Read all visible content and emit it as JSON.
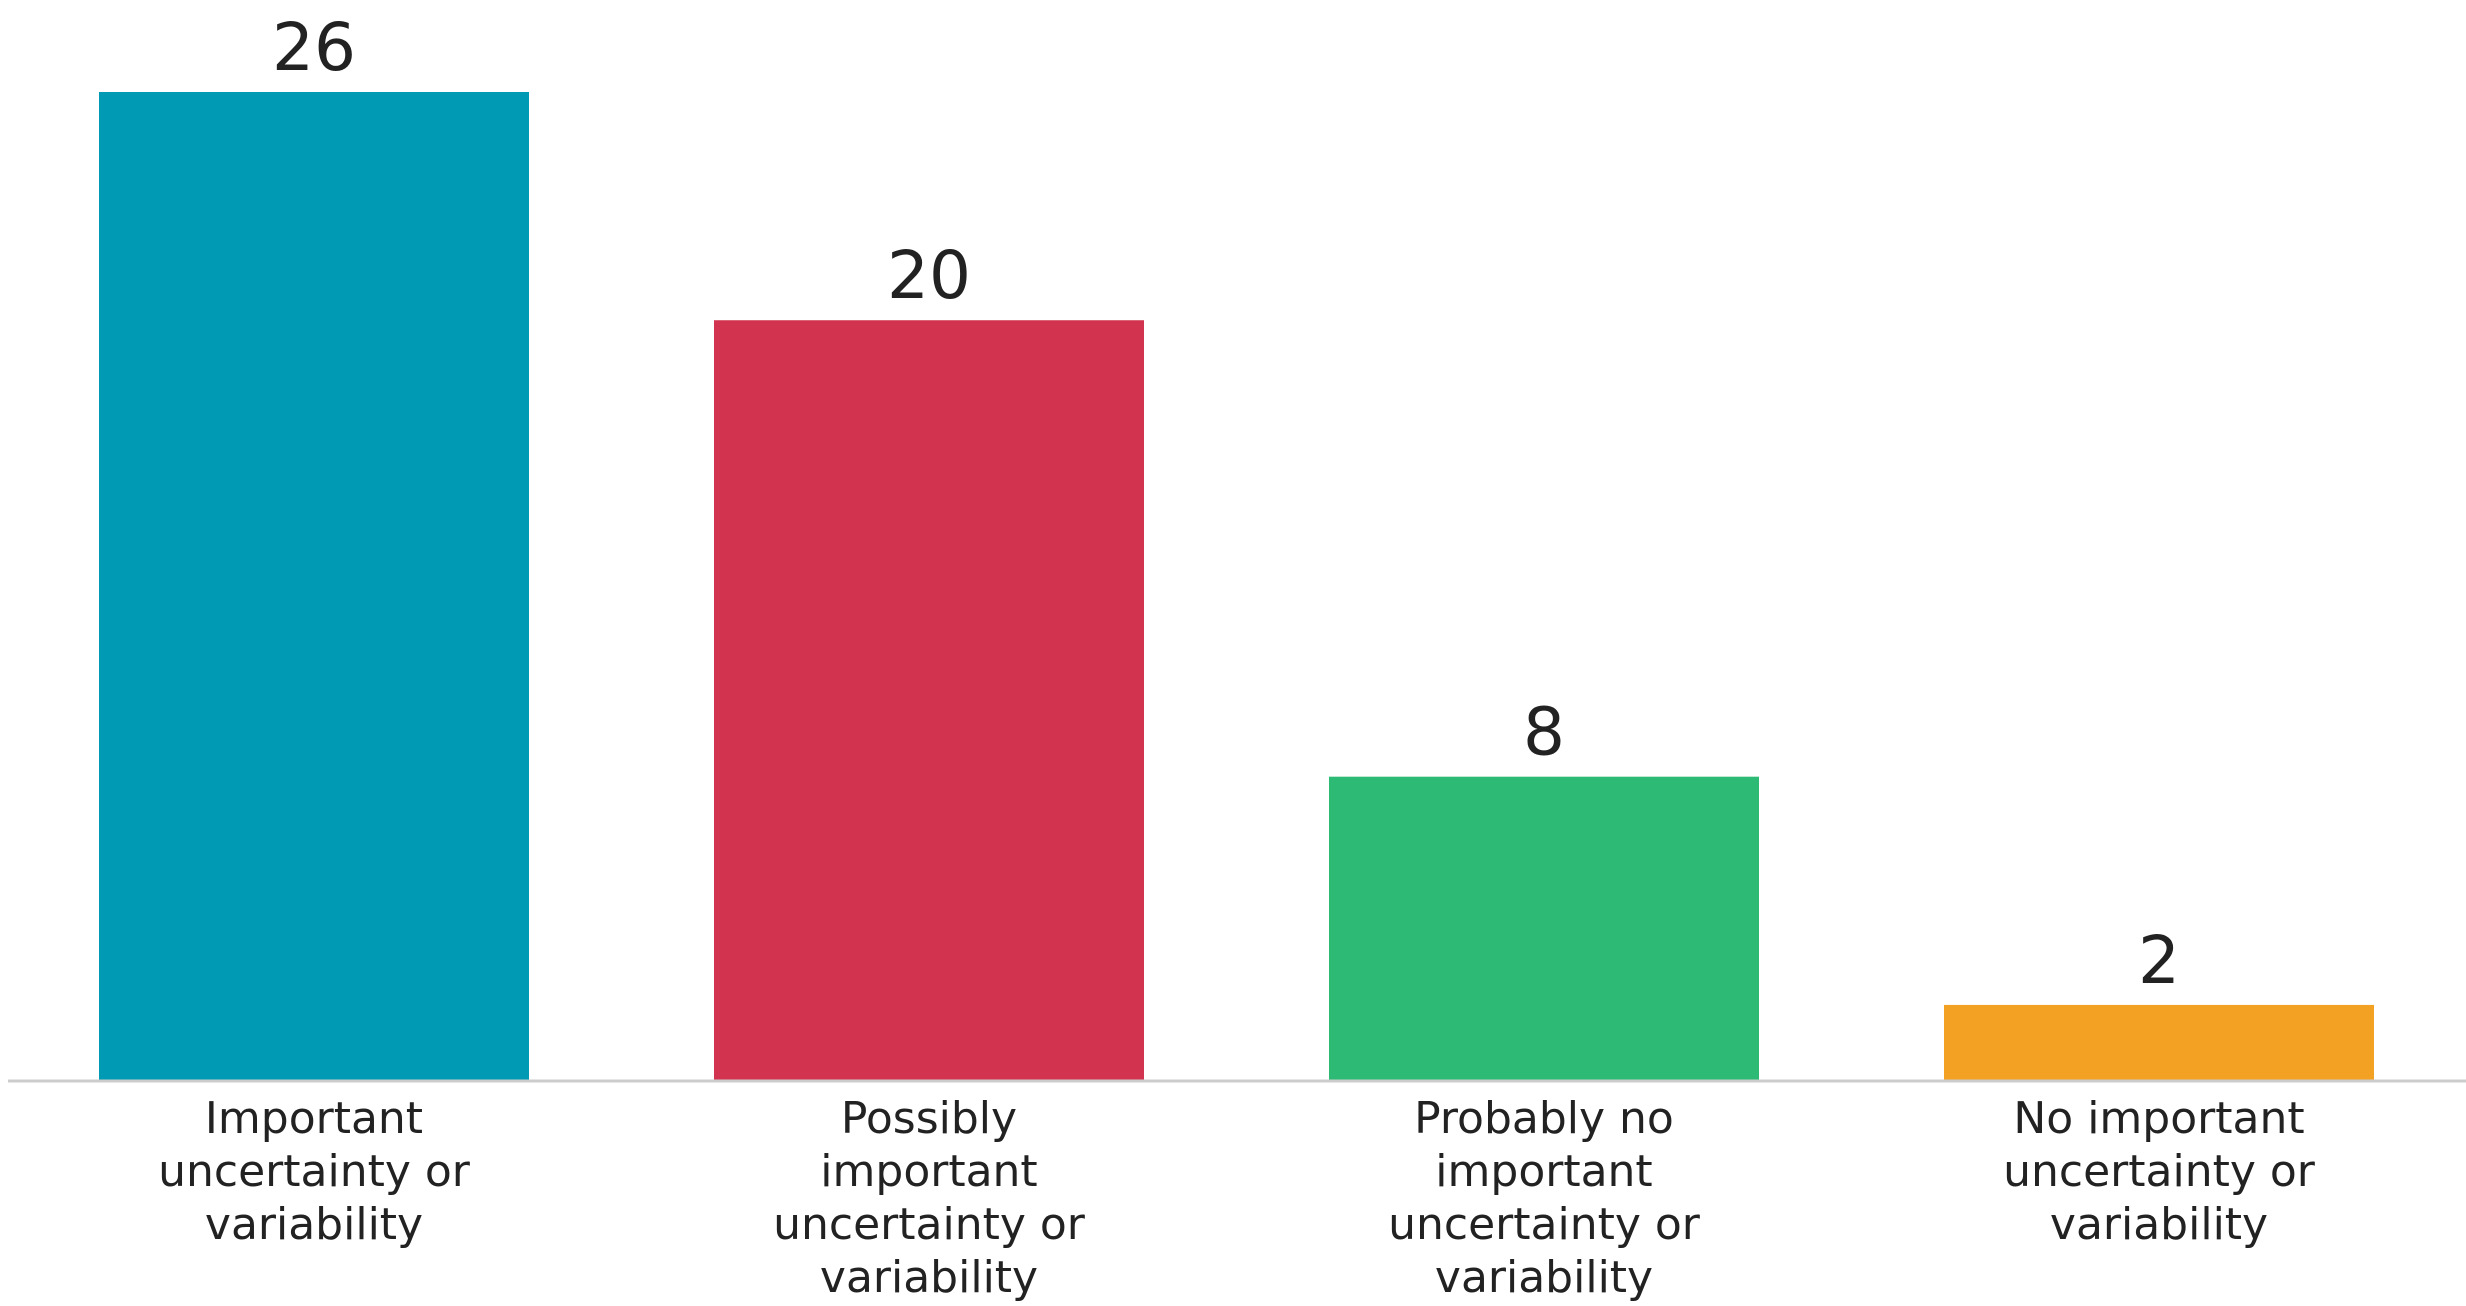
{
  "chart_data": {
    "type": "bar",
    "categories": [
      "Important uncertainty or variability",
      "Possibly important uncertainty or variability",
      "Probably no important uncertainty or variability",
      "No important uncertainty or variability"
    ],
    "category_lines": [
      [
        "Important",
        "uncertainty or",
        "variability"
      ],
      [
        "Possibly",
        "important",
        "uncertainty or",
        "variability"
      ],
      [
        "Probably no",
        "important",
        "uncertainty or",
        "variability"
      ],
      [
        "No important",
        "uncertainty or",
        "variability"
      ]
    ],
    "values": [
      26,
      20,
      8,
      2
    ],
    "data_labels": [
      "26",
      "20",
      "8",
      "2"
    ],
    "colors": [
      "#009ab4",
      "#d2334f",
      "#2dba75",
      "#f2a122"
    ],
    "title": "",
    "xlabel": "",
    "ylabel": "",
    "ylim": [
      0,
      26
    ],
    "grid": false,
    "legend": "none",
    "axis_color": "#cccccc"
  }
}
